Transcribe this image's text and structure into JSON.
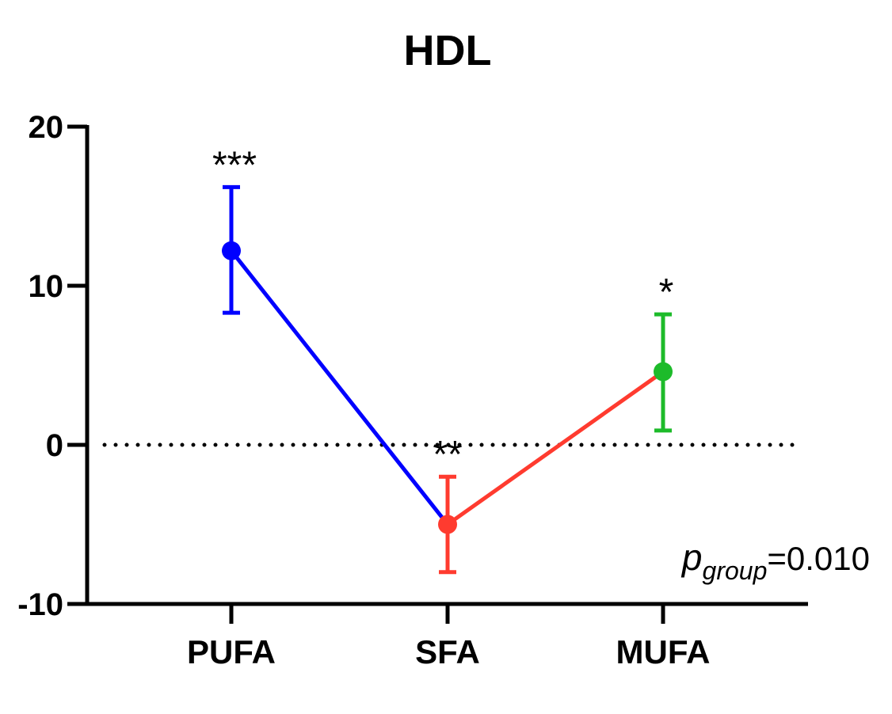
{
  "chart_data": {
    "type": "line",
    "title": "HDL",
    "xlabel": "",
    "ylabel": "",
    "categories": [
      "PUFA",
      "SFA",
      "MUFA"
    ],
    "ylim": [
      -10,
      20
    ],
    "yticks": [
      -10,
      0,
      10,
      20
    ],
    "reference_line": {
      "y": 0,
      "style": "dotted"
    },
    "points": [
      {
        "category": "PUFA",
        "value": 12.2,
        "err_low": 8.3,
        "err_high": 16.2,
        "color": "#0000ff",
        "significance": "***"
      },
      {
        "category": "SFA",
        "value": -5.0,
        "err_low": -8.0,
        "err_high": -2.0,
        "color": "#ff3b2f",
        "significance": "**"
      },
      {
        "category": "MUFA",
        "value": 4.6,
        "err_low": 0.9,
        "err_high": 8.2,
        "color": "#1dbb2a",
        "significance": "*"
      }
    ],
    "segments": [
      {
        "from": "PUFA",
        "to": "SFA",
        "color": "#0000ff"
      },
      {
        "from": "SFA",
        "to": "MUFA",
        "color": "#ff3b2f"
      }
    ],
    "annotation": {
      "p_symbol": "p",
      "p_subscript": "group",
      "p_text": "=0.010"
    }
  }
}
